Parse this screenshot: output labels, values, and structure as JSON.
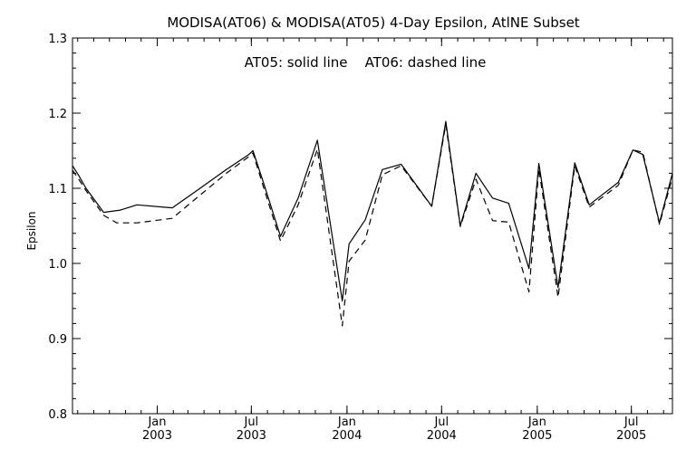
{
  "chart_data": {
    "type": "line",
    "title": "MODISA(AT06) & MODISA(AT05) 4-Day Epsilon, AtlNE Subset",
    "annotation": "AT05: solid line    AT06: dashed line",
    "xlabel": "",
    "ylabel": "Epsilon",
    "xlim": [
      "2002-07-22",
      "2005-09-18"
    ],
    "ylim": [
      0.8,
      1.3
    ],
    "grid": false,
    "x_ticks": [
      {
        "date": "2003-01-01",
        "label_top": "Jan",
        "label_bottom": "2003"
      },
      {
        "date": "2003-07-01",
        "label_top": "Jul",
        "label_bottom": "2003"
      },
      {
        "date": "2004-01-01",
        "label_top": "Jan",
        "label_bottom": "2004"
      },
      {
        "date": "2004-07-01",
        "label_top": "Jul",
        "label_bottom": "2004"
      },
      {
        "date": "2005-01-01",
        "label_top": "Jan",
        "label_bottom": "2005"
      },
      {
        "date": "2005-07-01",
        "label_top": "Jul",
        "label_bottom": "2005"
      }
    ],
    "y_ticks": [
      "0.8",
      "0.9",
      "1.0",
      "1.1",
      "1.2",
      "1.3"
    ],
    "series": [
      {
        "name": "AT05",
        "style": "solid",
        "color": "#000000",
        "points": [
          [
            "2002-07-22",
            1.13
          ],
          [
            "2002-08-03",
            1.117
          ],
          [
            "2002-08-17",
            1.1
          ],
          [
            "2002-09-20",
            1.068
          ],
          [
            "2002-10-22",
            1.071
          ],
          [
            "2002-11-23",
            1.078
          ],
          [
            "2003-01-30",
            1.074
          ],
          [
            "2003-03-14",
            1.095
          ],
          [
            "2003-05-14",
            1.125
          ],
          [
            "2003-06-26",
            1.145
          ],
          [
            "2003-07-04",
            1.15
          ],
          [
            "2003-07-26",
            1.104
          ],
          [
            "2003-08-26",
            1.036
          ],
          [
            "2003-09-29",
            1.087
          ],
          [
            "2003-11-05",
            1.164
          ],
          [
            "2003-12-23",
            0.95
          ],
          [
            "2004-01-05",
            1.026
          ],
          [
            "2004-02-05",
            1.058
          ],
          [
            "2004-03-09",
            1.125
          ],
          [
            "2004-04-14",
            1.132
          ],
          [
            "2004-06-12",
            1.076
          ],
          [
            "2004-07-09",
            1.189
          ],
          [
            "2004-08-06",
            1.05
          ],
          [
            "2004-09-05",
            1.12
          ],
          [
            "2004-10-07",
            1.087
          ],
          [
            "2004-11-07",
            1.08
          ],
          [
            "2004-12-16",
            0.993
          ],
          [
            "2005-01-04",
            1.133
          ],
          [
            "2005-02-10",
            0.968
          ],
          [
            "2005-03-14",
            1.134
          ],
          [
            "2005-04-11",
            1.078
          ],
          [
            "2005-06-06",
            1.108
          ],
          [
            "2005-07-04",
            1.151
          ],
          [
            "2005-07-23",
            1.145
          ],
          [
            "2005-08-24",
            1.054
          ],
          [
            "2005-09-18",
            1.12
          ]
        ]
      },
      {
        "name": "AT06",
        "style": "dashed",
        "color": "#000000",
        "points": [
          [
            "2002-07-22",
            1.124
          ],
          [
            "2002-08-03",
            1.112
          ],
          [
            "2002-08-17",
            1.097
          ],
          [
            "2002-09-20",
            1.064
          ],
          [
            "2002-10-15",
            1.054
          ],
          [
            "2002-11-23",
            1.054
          ],
          [
            "2003-01-30",
            1.06
          ],
          [
            "2003-03-14",
            1.085
          ],
          [
            "2003-05-14",
            1.12
          ],
          [
            "2003-06-26",
            1.142
          ],
          [
            "2003-07-04",
            1.147
          ],
          [
            "2003-07-26",
            1.098
          ],
          [
            "2003-08-26",
            1.03
          ],
          [
            "2003-09-29",
            1.078
          ],
          [
            "2003-11-05",
            1.152
          ],
          [
            "2003-12-23",
            0.917
          ],
          [
            "2004-01-05",
            1.003
          ],
          [
            "2004-02-05",
            1.031
          ],
          [
            "2004-03-09",
            1.118
          ],
          [
            "2004-04-14",
            1.13
          ],
          [
            "2004-06-12",
            1.076
          ],
          [
            "2004-07-09",
            1.185
          ],
          [
            "2004-08-06",
            1.049
          ],
          [
            "2004-09-05",
            1.112
          ],
          [
            "2004-10-07",
            1.057
          ],
          [
            "2004-11-07",
            1.055
          ],
          [
            "2004-12-16",
            0.962
          ],
          [
            "2005-01-04",
            1.126
          ],
          [
            "2005-02-10",
            0.955
          ],
          [
            "2005-03-14",
            1.13
          ],
          [
            "2005-04-11",
            1.075
          ],
          [
            "2005-06-06",
            1.104
          ],
          [
            "2005-07-04",
            1.151
          ],
          [
            "2005-07-23",
            1.148
          ],
          [
            "2005-08-24",
            1.052
          ],
          [
            "2005-09-18",
            1.115
          ]
        ]
      }
    ]
  }
}
